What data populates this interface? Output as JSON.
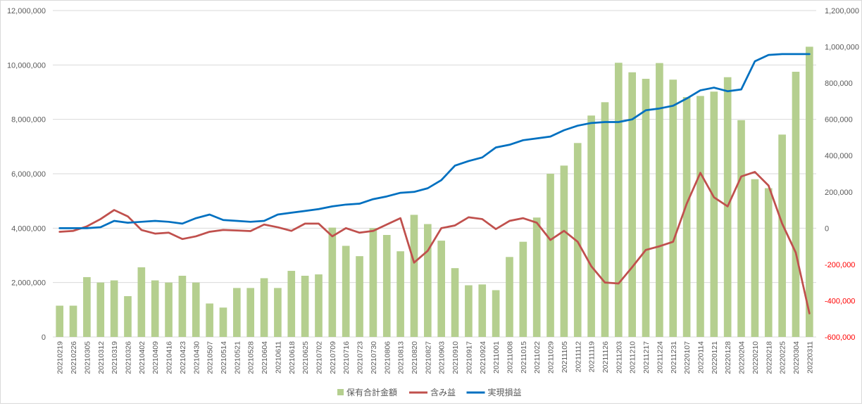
{
  "chart_data": {
    "type": "bar+line",
    "title": "",
    "grid": "horizontal",
    "legend_position": "bottom",
    "y_left": {
      "ylim": [
        0,
        12000000
      ],
      "ticks": [
        "0",
        "2,000,000",
        "4,000,000",
        "6,000,000",
        "8,000,000",
        "10,000,000",
        "12,000,000"
      ]
    },
    "y_right": {
      "ylim": [
        -600000,
        1200000
      ],
      "ticks": [
        "-600,000",
        "-400,000",
        "-200,000",
        "0",
        "200,000",
        "400,000",
        "600,000",
        "800,000",
        "1,000,000",
        "1,200,000"
      ]
    },
    "categories": [
      "20210219",
      "20210226",
      "20210305",
      "20210312",
      "20210319",
      "20210326",
      "20210402",
      "20210409",
      "20210416",
      "20210423",
      "20210430",
      "20210507",
      "20210514",
      "20210521",
      "20210528",
      "20210604",
      "20210611",
      "20210618",
      "20210625",
      "20210702",
      "20210709",
      "20210716",
      "20210723",
      "20210730",
      "20210806",
      "20210813",
      "20210820",
      "20210827",
      "20210903",
      "20210910",
      "20210917",
      "20210924",
      "20211001",
      "20211008",
      "20211015",
      "20211022",
      "20211029",
      "20211105",
      "20211112",
      "20211119",
      "20211126",
      "20211203",
      "20211210",
      "20211217",
      "20211224",
      "20211231",
      "20220107",
      "20220114",
      "20220121",
      "20220128",
      "20220204",
      "20220210",
      "20220218",
      "20220225",
      "20220304",
      "20220311"
    ],
    "series": [
      {
        "name": "保有合計金額",
        "kind": "bar",
        "axis": "left",
        "color": "#b5cf8f",
        "values": [
          1150000,
          1150000,
          2200000,
          2000000,
          2080000,
          1500000,
          2560000,
          2080000,
          2000000,
          2250000,
          2000000,
          1230000,
          1080000,
          1800000,
          1800000,
          2160000,
          1800000,
          2430000,
          2250000,
          2300000,
          4020000,
          3350000,
          2970000,
          4000000,
          3750000,
          3150000,
          4490000,
          4150000,
          3540000,
          2530000,
          1900000,
          1930000,
          1720000,
          2940000,
          3500000,
          4390000,
          6000000,
          6300000,
          7130000,
          8140000,
          8630000,
          10080000,
          9730000,
          9490000,
          10070000,
          9460000,
          8820000,
          8860000,
          9020000,
          9550000,
          7970000,
          5800000,
          5470000,
          7440000,
          9750000,
          10670000
        ]
      },
      {
        "name": "含み益",
        "kind": "line",
        "axis": "right",
        "color": "#c0504d",
        "values": [
          -20000,
          -15000,
          10000,
          50000,
          100000,
          65000,
          -10000,
          -30000,
          -25000,
          -60000,
          -45000,
          -20000,
          -10000,
          -13000,
          -16000,
          20000,
          5000,
          -15000,
          25000,
          25000,
          -45000,
          0,
          -25000,
          -15000,
          20000,
          55000,
          -190000,
          -125000,
          0,
          15000,
          60000,
          50000,
          -5000,
          40000,
          55000,
          30000,
          -65000,
          -15000,
          -75000,
          -210000,
          -300000,
          -305000,
          -215000,
          -120000,
          -100000,
          -75000,
          135000,
          305000,
          170000,
          120000,
          285000,
          310000,
          235000,
          25000,
          -135000,
          -470000
        ]
      },
      {
        "name": "実現損益",
        "kind": "line",
        "axis": "right",
        "color": "#0070c0",
        "values": [
          0,
          0,
          0,
          5000,
          40000,
          30000,
          35000,
          40000,
          35000,
          25000,
          55000,
          75000,
          45000,
          40000,
          35000,
          40000,
          75000,
          85000,
          95000,
          105000,
          120000,
          130000,
          135000,
          160000,
          175000,
          195000,
          200000,
          220000,
          265000,
          345000,
          370000,
          390000,
          445000,
          460000,
          485000,
          495000,
          505000,
          540000,
          565000,
          580000,
          585000,
          585000,
          600000,
          650000,
          660000,
          675000,
          715000,
          760000,
          775000,
          755000,
          765000,
          920000,
          955000,
          960000,
          960000,
          960000
        ]
      }
    ]
  }
}
